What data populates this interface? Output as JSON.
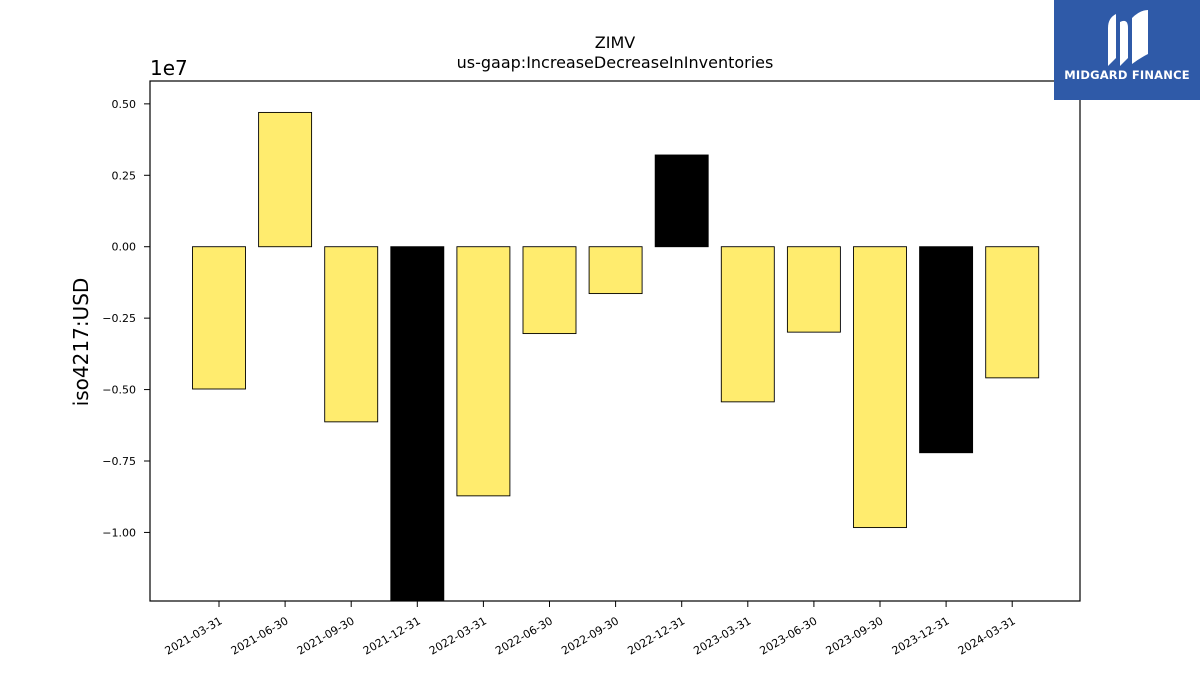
{
  "brand": {
    "name": "MIDGARD FINANCE",
    "background": "#2f5aa8"
  },
  "chart_data": {
    "type": "bar",
    "title": "ZIMV",
    "subtitle": "us-gaap:IncreaseDecreaseInInventories",
    "xlabel": "",
    "ylabel": "iso4217:USD",
    "y_offset_label": "1e7",
    "ylim": [
      -12400000,
      5800000
    ],
    "yticks": [
      5000000,
      2500000,
      0,
      -2500000,
      -5000000,
      -7500000,
      -10000000
    ],
    "ytick_labels": [
      "0.50",
      "0.25",
      "0.00",
      "−0.25",
      "−0.50",
      "−0.75",
      "−1.00"
    ],
    "grid": false,
    "categories": [
      "2021-03-31",
      "2021-06-30",
      "2021-09-30",
      "2021-12-31",
      "2022-03-31",
      "2022-06-30",
      "2022-09-30",
      "2022-12-31",
      "2023-03-31",
      "2023-06-30",
      "2023-09-30",
      "2023-12-31",
      "2024-03-31"
    ],
    "values": [
      -4980000,
      4700000,
      -6130000,
      -12400000,
      -8720000,
      -3040000,
      -1640000,
      3210000,
      -5430000,
      -2990000,
      -9830000,
      -7210000,
      -4590000
    ],
    "bar_colors": [
      "#ffec6e",
      "#ffec6e",
      "#ffec6e",
      "#000000",
      "#ffec6e",
      "#ffec6e",
      "#ffec6e",
      "#000000",
      "#ffec6e",
      "#ffec6e",
      "#ffec6e",
      "#000000",
      "#ffec6e"
    ]
  }
}
